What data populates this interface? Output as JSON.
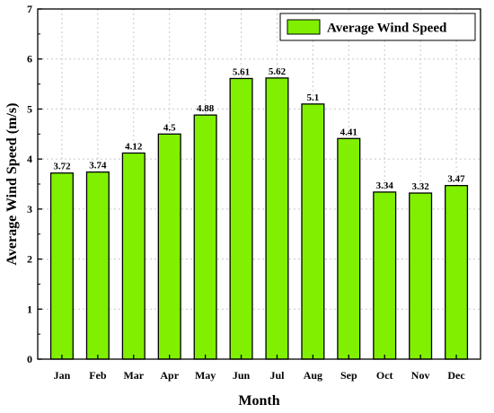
{
  "chart_data": {
    "type": "bar",
    "categories": [
      "Jan",
      "Feb",
      "Mar",
      "Apr",
      "May",
      "Jun",
      "Jul",
      "Aug",
      "Sep",
      "Oct",
      "Nov",
      "Dec"
    ],
    "series": [
      {
        "name": "Average Wind Speed",
        "values": [
          3.72,
          3.74,
          4.12,
          4.5,
          4.88,
          5.61,
          5.62,
          5.1,
          4.41,
          3.34,
          3.32,
          3.47
        ],
        "color": "#80f000"
      }
    ],
    "value_labels": [
      "3.72",
      "3.74",
      "4.12",
      "4.5",
      "4.88",
      "5.61",
      "5.62",
      "5.1",
      "4.41",
      "3.34",
      "3.32",
      "3.47"
    ],
    "xlabel": "Month",
    "ylabel": "Average Wind Speed (m/s)",
    "ylim": [
      0,
      7
    ],
    "yticks": [
      0,
      1,
      2,
      3,
      4,
      5,
      6,
      7
    ],
    "grid": true,
    "legend_position": "top-right"
  }
}
